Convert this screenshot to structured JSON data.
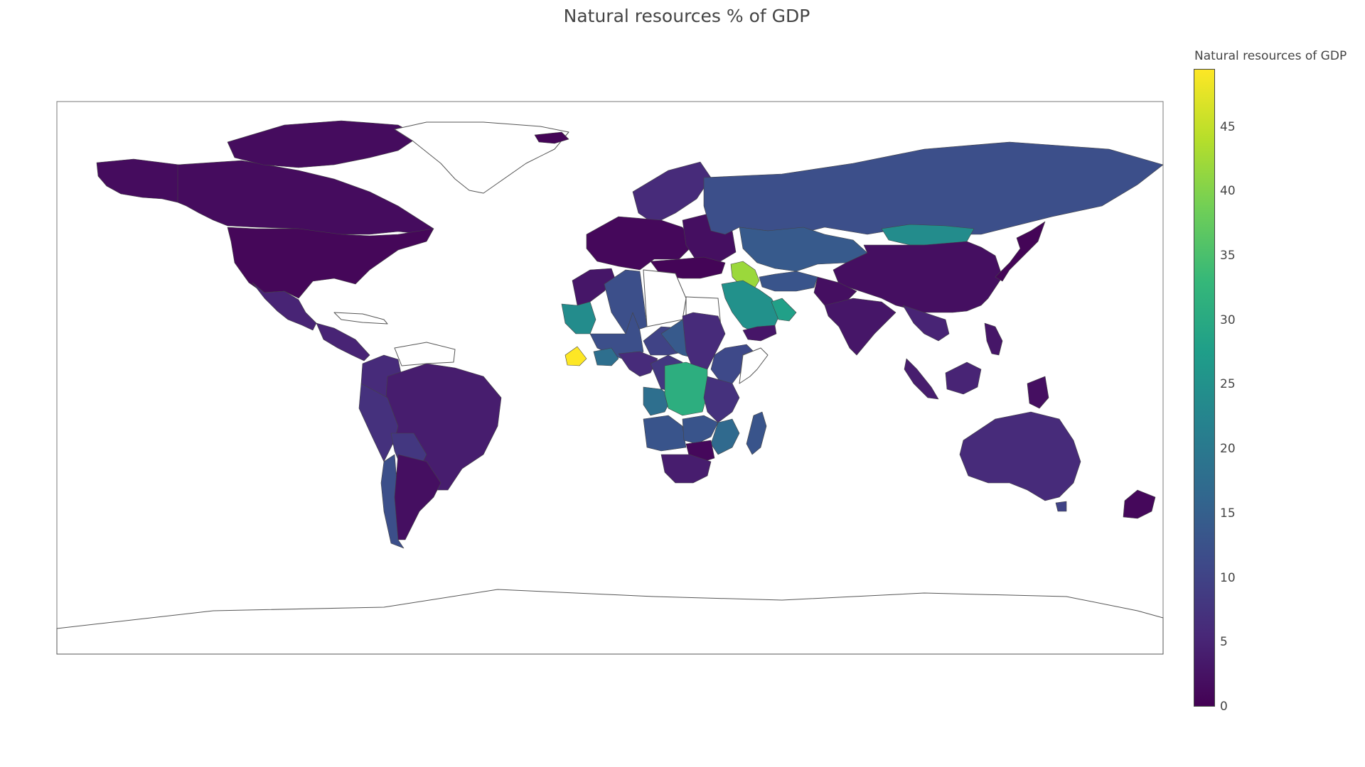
{
  "chart_data": {
    "type": "choropleth",
    "title": "Natural resources % of GDP",
    "colorbar": {
      "title": "Natural resources of GDP",
      "colorscale": "Viridis",
      "range": [
        0,
        49.5
      ],
      "ticks": [
        "0",
        "5",
        "10",
        "15",
        "20",
        "25",
        "30",
        "35",
        "40",
        "45"
      ],
      "tick_values": [
        0,
        5,
        10,
        15,
        20,
        25,
        30,
        35,
        40,
        45
      ],
      "stops": [
        "#440154",
        "#482878",
        "#3e4989",
        "#31688e",
        "#26828e",
        "#1f9e89",
        "#35b779",
        "#6ece58",
        "#b5de2b",
        "#fde725"
      ]
    },
    "projection": "equirectangular",
    "no_data_color": "#ffffff",
    "regions": [
      {
        "name": "Alaska (USA)",
        "value": 1.5
      },
      {
        "name": "Canada",
        "value": 1.5
      },
      {
        "name": "Canadian Arctic Islands",
        "value": 1.5
      },
      {
        "name": "Greenland",
        "value": null
      },
      {
        "name": "Iceland",
        "value": 0.5
      },
      {
        "name": "United States",
        "value": 0.8
      },
      {
        "name": "Mexico",
        "value": 5
      },
      {
        "name": "Central America",
        "value": 5
      },
      {
        "name": "Cuba",
        "value": null
      },
      {
        "name": "Colombia",
        "value": 6
      },
      {
        "name": "Venezuela",
        "value": null
      },
      {
        "name": "Brazil",
        "value": 4
      },
      {
        "name": "Peru",
        "value": 7
      },
      {
        "name": "Bolivia",
        "value": 8
      },
      {
        "name": "Chile",
        "value": 12
      },
      {
        "name": "Argentina",
        "value": 2
      },
      {
        "name": "Scandinavia",
        "value": 6
      },
      {
        "name": "Western Europe",
        "value": 1
      },
      {
        "name": "Eastern Europe",
        "value": 2
      },
      {
        "name": "Russia",
        "value": 12
      },
      {
        "name": "Kazakhstan",
        "value": 14
      },
      {
        "name": "Mongolia",
        "value": 24
      },
      {
        "name": "China",
        "value": 2
      },
      {
        "name": "Japan",
        "value": 0.5
      },
      {
        "name": "Turkey",
        "value": 0.5
      },
      {
        "name": "Iraq",
        "value": 42
      },
      {
        "name": "Iran",
        "value": 13
      },
      {
        "name": "Saudi Arabia",
        "value": 25
      },
      {
        "name": "Oman",
        "value": 28
      },
      {
        "name": "Yemen",
        "value": 3
      },
      {
        "name": "Afghanistan / Pakistan",
        "value": 2
      },
      {
        "name": "India",
        "value": 3
      },
      {
        "name": "Southeast Asia",
        "value": 5
      },
      {
        "name": "Sumatra",
        "value": 4
      },
      {
        "name": "Borneo",
        "value": 5
      },
      {
        "name": "Philippines",
        "value": 3
      },
      {
        "name": "Papua New Guinea",
        "value": 2
      },
      {
        "name": "Morocco",
        "value": 3
      },
      {
        "name": "Algeria",
        "value": 12
      },
      {
        "name": "Libya",
        "value": null
      },
      {
        "name": "Egypt",
        "value": null
      },
      {
        "name": "Mauritania",
        "value": 24
      },
      {
        "name": "Mali",
        "value": 12
      },
      {
        "name": "Niger",
        "value": 10
      },
      {
        "name": "Chad",
        "value": 14
      },
      {
        "name": "Sudan",
        "value": 6
      },
      {
        "name": "Ethiopia",
        "value": 11
      },
      {
        "name": "Somalia",
        "value": null
      },
      {
        "name": "Liberia",
        "value": 49.5
      },
      {
        "name": "Ghana",
        "value": 18
      },
      {
        "name": "Nigeria",
        "value": 6
      },
      {
        "name": "Cameroon",
        "value": 8
      },
      {
        "name": "Gabon / Congo",
        "value": 18
      },
      {
        "name": "DR Congo",
        "value": 31
      },
      {
        "name": "Tanzania",
        "value": 7
      },
      {
        "name": "Angola",
        "value": 13
      },
      {
        "name": "Zambia",
        "value": 13
      },
      {
        "name": "Mozambique",
        "value": 17
      },
      {
        "name": "Zimbabwe",
        "value": 1
      },
      {
        "name": "Southern Africa",
        "value": 4
      },
      {
        "name": "Madagascar",
        "value": 13
      },
      {
        "name": "Australia",
        "value": 6
      },
      {
        "name": "Tasmania",
        "value": 10
      },
      {
        "name": "New Zealand",
        "value": 1
      },
      {
        "name": "Antarctica",
        "value": null
      }
    ]
  }
}
